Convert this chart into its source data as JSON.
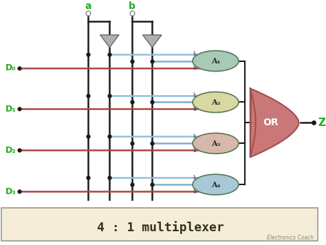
{
  "title": "4 : 1 multiplexer",
  "bg_color": "#f5edd8",
  "main_bg": "#ffffff",
  "inputs": [
    "D₀",
    "D₁",
    "D₂",
    "D₃"
  ],
  "select_labels": [
    "a",
    "b"
  ],
  "and_labels": [
    "A₁",
    "A₂",
    "A₃",
    "A₄"
  ],
  "and_colors": [
    "#a8c8b8",
    "#d8d8a0",
    "#d8b8a8",
    "#a8c8d8"
  ],
  "or_color": "#c87070",
  "or_edge": "#a05050",
  "wire_blue": "#7ab0d0",
  "wire_blue2": "#90c0e0",
  "wire_red": "#aa4444",
  "wire_red2": "#cc6666",
  "wire_black": "#1a1a1a",
  "green_color": "#22aa22",
  "dot_color": "#111111",
  "title_fontsize": 13,
  "watermark": "Electronics Coach"
}
